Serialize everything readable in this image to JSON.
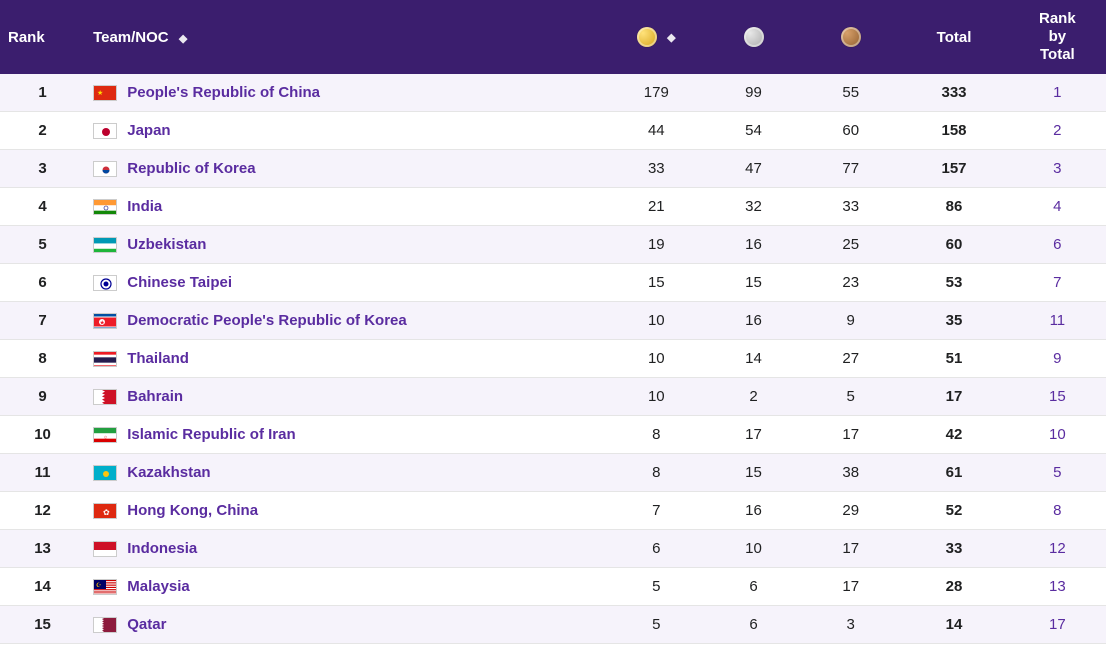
{
  "columns": {
    "rank": "Rank",
    "team": "Team/NOC",
    "total": "Total",
    "rank_by_total": [
      "Rank",
      "by",
      "Total"
    ]
  },
  "medal_icons": {
    "gold": "gold-medal",
    "silver": "silver-medal",
    "bronze": "bronze-medal"
  },
  "colors": {
    "header_bg": "#3b1e6e",
    "header_fg": "#ffffff",
    "row_odd_bg": "#f6f3fb",
    "row_even_bg": "#ffffff",
    "link_color": "#5a2ca0",
    "border_color": "#e5e5e5"
  },
  "rows": [
    {
      "rank": "1",
      "team": "People's Republic of China",
      "flag": "CHN",
      "gold": "179",
      "silver": "99",
      "bronze": "55",
      "total": "333",
      "rbt": "1"
    },
    {
      "rank": "2",
      "team": "Japan",
      "flag": "JPN",
      "gold": "44",
      "silver": "54",
      "bronze": "60",
      "total": "158",
      "rbt": "2"
    },
    {
      "rank": "3",
      "team": "Republic of Korea",
      "flag": "KOR",
      "gold": "33",
      "silver": "47",
      "bronze": "77",
      "total": "157",
      "rbt": "3"
    },
    {
      "rank": "4",
      "team": "India",
      "flag": "IND",
      "gold": "21",
      "silver": "32",
      "bronze": "33",
      "total": "86",
      "rbt": "4"
    },
    {
      "rank": "5",
      "team": "Uzbekistan",
      "flag": "UZB",
      "gold": "19",
      "silver": "16",
      "bronze": "25",
      "total": "60",
      "rbt": "6"
    },
    {
      "rank": "6",
      "team": "Chinese Taipei",
      "flag": "TPE",
      "gold": "15",
      "silver": "15",
      "bronze": "23",
      "total": "53",
      "rbt": "7"
    },
    {
      "rank": "7",
      "team": "Democratic People's Republic of Korea",
      "flag": "PRK",
      "gold": "10",
      "silver": "16",
      "bronze": "9",
      "total": "35",
      "rbt": "11"
    },
    {
      "rank": "8",
      "team": "Thailand",
      "flag": "THA",
      "gold": "10",
      "silver": "14",
      "bronze": "27",
      "total": "51",
      "rbt": "9"
    },
    {
      "rank": "9",
      "team": "Bahrain",
      "flag": "BHR",
      "gold": "10",
      "silver": "2",
      "bronze": "5",
      "total": "17",
      "rbt": "15"
    },
    {
      "rank": "10",
      "team": "Islamic Republic of Iran",
      "flag": "IRI",
      "gold": "8",
      "silver": "17",
      "bronze": "17",
      "total": "42",
      "rbt": "10"
    },
    {
      "rank": "11",
      "team": "Kazakhstan",
      "flag": "KAZ",
      "gold": "8",
      "silver": "15",
      "bronze": "38",
      "total": "61",
      "rbt": "5"
    },
    {
      "rank": "12",
      "team": "Hong Kong, China",
      "flag": "HKG",
      "gold": "7",
      "silver": "16",
      "bronze": "29",
      "total": "52",
      "rbt": "8"
    },
    {
      "rank": "13",
      "team": "Indonesia",
      "flag": "INA",
      "gold": "6",
      "silver": "10",
      "bronze": "17",
      "total": "33",
      "rbt": "12"
    },
    {
      "rank": "14",
      "team": "Malaysia",
      "flag": "MAS",
      "gold": "5",
      "silver": "6",
      "bronze": "17",
      "total": "28",
      "rbt": "13"
    },
    {
      "rank": "15",
      "team": "Qatar",
      "flag": "QAT",
      "gold": "5",
      "silver": "6",
      "bronze": "3",
      "total": "14",
      "rbt": "17"
    }
  ]
}
